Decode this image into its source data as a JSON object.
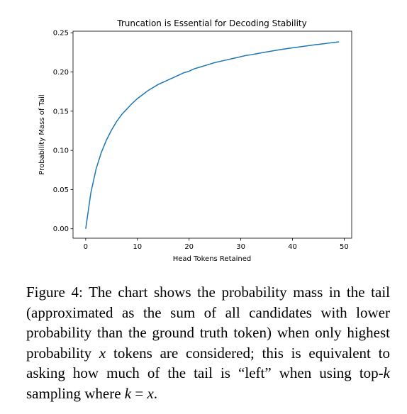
{
  "chart_data": {
    "type": "line",
    "title": "Truncation is Essential for Decoding Stability",
    "xlabel": "Head Tokens Retained",
    "ylabel": "Probability Mass of Tail",
    "xlim": [
      -2.45,
      51.45
    ],
    "ylim": [
      -0.012,
      0.252
    ],
    "xticks": [
      0,
      10,
      20,
      30,
      40,
      50
    ],
    "yticks": [
      0.0,
      0.05,
      0.1,
      0.15,
      0.2,
      0.25
    ],
    "xtick_labels": [
      "0",
      "10",
      "20",
      "30",
      "40",
      "50"
    ],
    "ytick_labels": [
      "0.00",
      "0.05",
      "0.10",
      "0.15",
      "0.20",
      "0.25"
    ],
    "grid": false,
    "legend": "none",
    "line_color": "#1f77b4",
    "series": [
      {
        "x": [
          0,
          1,
          2,
          3,
          4,
          5,
          6,
          7,
          8,
          9,
          10,
          11,
          12,
          13,
          14,
          15,
          16,
          17,
          18,
          19,
          20,
          21,
          22,
          23,
          24,
          25,
          26,
          27,
          28,
          29,
          30,
          31,
          32,
          33,
          34,
          35,
          36,
          37,
          38,
          39,
          40,
          41,
          42,
          43,
          44,
          45,
          46,
          47,
          48,
          49
        ],
        "values": [
          0.0,
          0.046,
          0.076,
          0.097,
          0.113,
          0.126,
          0.137,
          0.146,
          0.153,
          0.16,
          0.166,
          0.171,
          0.176,
          0.18,
          0.184,
          0.187,
          0.19,
          0.193,
          0.196,
          0.199,
          0.201,
          0.204,
          0.206,
          0.208,
          0.21,
          0.212,
          0.2135,
          0.215,
          0.2165,
          0.218,
          0.2195,
          0.221,
          0.222,
          0.2232,
          0.2244,
          0.2256,
          0.2267,
          0.2278,
          0.2288,
          0.2298,
          0.2308,
          0.2317,
          0.2326,
          0.2335,
          0.2344,
          0.2352,
          0.236,
          0.2368,
          0.2376,
          0.2384
        ]
      }
    ]
  },
  "caption": {
    "label": "Figure 4:",
    "text_1": " The chart shows the probability mass in the tail (approximated as the sum of all candidates with lower probability than the ground truth token) when only highest probability ",
    "var_x": "x",
    "text_2": " tokens are considered; this is equivalent to asking how much of the tail is “left” when using top-",
    "var_k": "k",
    "text_3": " sampling where ",
    "eq_lhs": "k",
    "eq_op": " = ",
    "eq_rhs": "x",
    "text_4": "."
  }
}
